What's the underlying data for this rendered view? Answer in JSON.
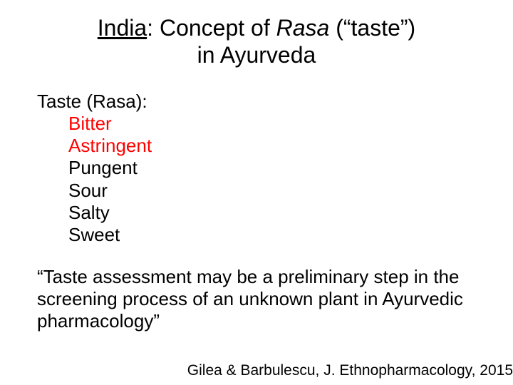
{
  "title": {
    "part1": "India",
    "part2": ": Concept of ",
    "part3": "Rasa",
    "part4": " (“taste”)",
    "line2": "in Ayurveda"
  },
  "heading": "Taste (Rasa):",
  "tastes": [
    {
      "label": "Bitter",
      "highlighted": true
    },
    {
      "label": "Astringent",
      "highlighted": true
    },
    {
      "label": "Pungent",
      "highlighted": false
    },
    {
      "label": "Sour",
      "highlighted": false
    },
    {
      "label": "Salty",
      "highlighted": false
    },
    {
      "label": "Sweet",
      "highlighted": false
    }
  ],
  "quote": "“Taste assessment may be a preliminary step in the screening process of an unknown plant in Ayurvedic pharmacology”",
  "citation": "Gilea & Barbulescu, J. Ethnopharmacology, 2015",
  "colors": {
    "highlight": "#ff0000",
    "text": "#000000",
    "background": "#ffffff"
  },
  "fontsizes": {
    "title": 32,
    "body": 26,
    "citation": 21
  }
}
